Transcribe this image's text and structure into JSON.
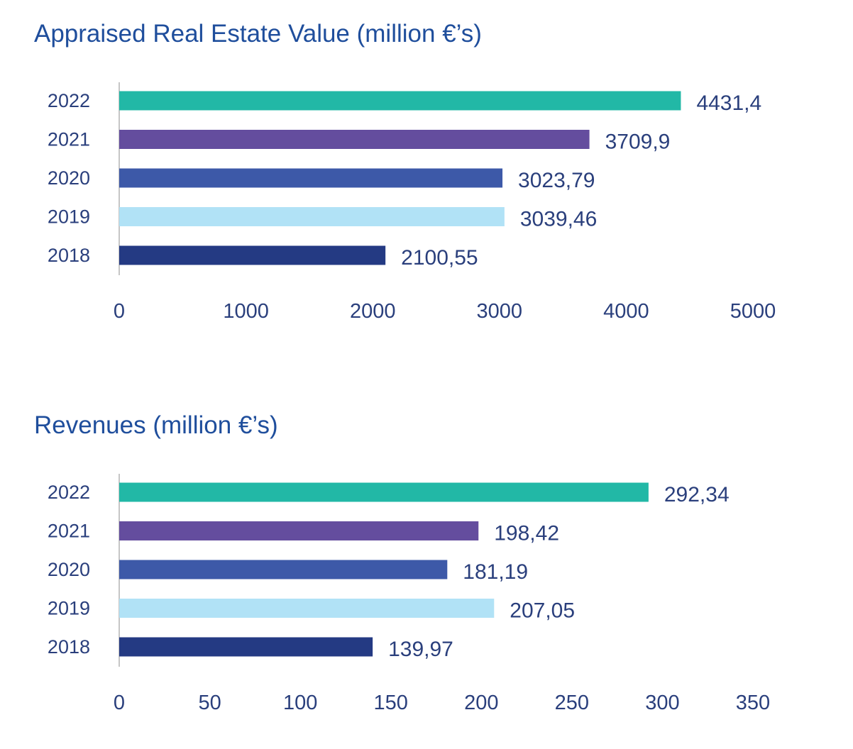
{
  "chart_data": [
    {
      "type": "bar",
      "orientation": "horizontal",
      "title": "Appraised Real Estate Value (million €’s)",
      "categories": [
        "2022",
        "2021",
        "2020",
        "2019",
        "2018"
      ],
      "values": [
        4431.4,
        3709.9,
        3023.79,
        3039.46,
        2100.55
      ],
      "value_labels": [
        "4431,4",
        "3709,9",
        "3023,79",
        "3039,46",
        "2100,55"
      ],
      "bar_colors": [
        "#22b8a6",
        "#644d9e",
        "#3d59a8",
        "#b1e2f6",
        "#243a83"
      ],
      "xlim": [
        0,
        5000
      ],
      "xticks": [
        0,
        1000,
        2000,
        3000,
        4000,
        5000
      ],
      "xlabel": "",
      "ylabel": "",
      "grid": false
    },
    {
      "type": "bar",
      "orientation": "horizontal",
      "title": "Revenues (million €’s)",
      "categories": [
        "2022",
        "2021",
        "2020",
        "2019",
        "2018"
      ],
      "values": [
        292.34,
        198.42,
        181.19,
        207.05,
        139.97
      ],
      "value_labels": [
        "292,34",
        "198,42",
        "181,19",
        "207,05",
        "139,97"
      ],
      "bar_colors": [
        "#22b8a6",
        "#644d9e",
        "#3d59a8",
        "#b1e2f6",
        "#243a83"
      ],
      "xlim": [
        0,
        350
      ],
      "xticks": [
        0,
        50,
        100,
        150,
        200,
        250,
        300,
        350
      ],
      "xlabel": "",
      "ylabel": "",
      "grid": false
    }
  ]
}
